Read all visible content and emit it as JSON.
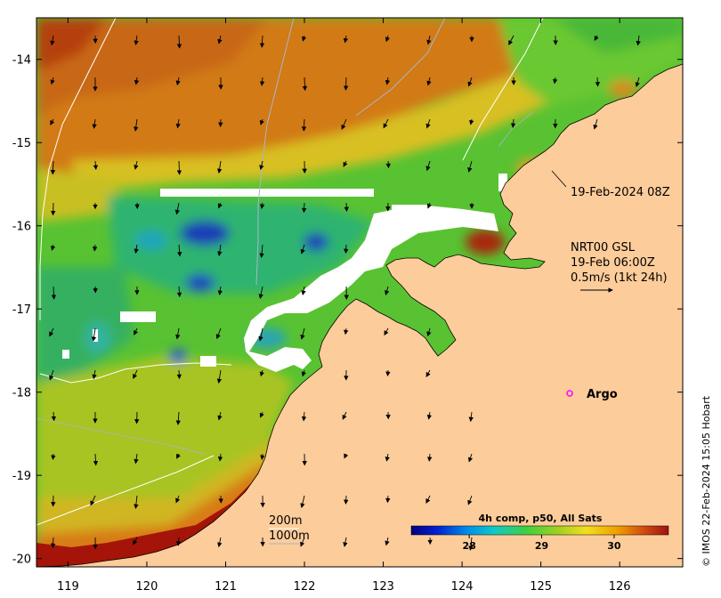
{
  "map": {
    "x_range": [
      118.6,
      126.8
    ],
    "y_range": [
      -20.1,
      -13.5
    ],
    "x_ticks": [
      119,
      120,
      121,
      122,
      123,
      124,
      125,
      126
    ],
    "y_ticks": [
      -14,
      -15,
      -16,
      -17,
      -18,
      -19,
      -20
    ],
    "colors": {
      "land": "#fccc9a",
      "deep_red": "#a51409",
      "orange": "#d9761a",
      "yellow_green": "#b5c526",
      "green": "#4ec02e",
      "teal": "#1fae8a",
      "blue": "#1638b4",
      "cloud": "#ffffff",
      "contour": "#aab4c8"
    }
  },
  "annotations": {
    "argo_label": "Argo",
    "argo_position": [
      125.35,
      -18.0
    ],
    "timestamp_label": "19-Feb-2024 08Z",
    "current_block": {
      "line1": "NRT00 GSL",
      "line2": "19-Feb 06:00Z",
      "line3": "0.5m/s (1kt 24h)"
    },
    "depth_200": "200m",
    "depth_1000": "1000m"
  },
  "colorbar": {
    "title": "4h comp, p50, All Sats",
    "ticks": [
      {
        "value": 28,
        "label": "28"
      },
      {
        "value": 29,
        "label": "29"
      },
      {
        "value": 30,
        "label": "30"
      }
    ],
    "range": [
      27.2,
      30.75
    ],
    "stops": [
      "#00007f",
      "#0020d0",
      "#0090e8",
      "#10c8c8",
      "#40d040",
      "#a0d020",
      "#f0e020",
      "#f0a000",
      "#d05010",
      "#a01010"
    ]
  },
  "credit": "© IMOS 22-Feb-2024 15:05 Hobart"
}
